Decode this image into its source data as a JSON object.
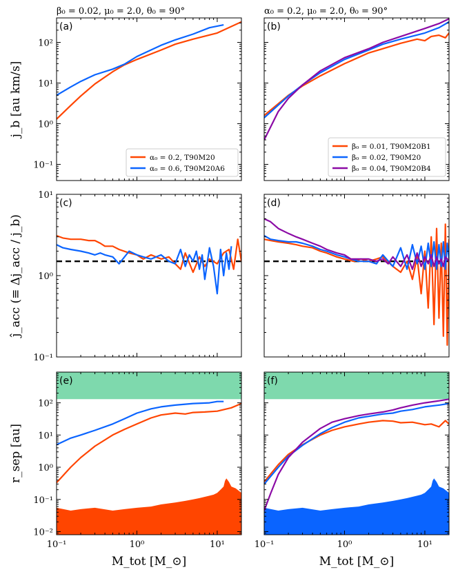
{
  "figure": {
    "column_titles": [
      "β₀ = 0.02,  μ₀ = 2.0,  θ₀ = 90°",
      "α₀ = 0.2,  μ₀ = 2.0,  θ₀ = 90°"
    ],
    "x_axis_label": "M_tot [M_⊙]",
    "x_ticks": [
      "10⁻¹",
      "10⁰",
      "10¹"
    ]
  },
  "colors": {
    "orange": "#ff4500",
    "blue": "#0a64ff",
    "purple": "#8b0aa5",
    "green_band": "#7ed9ad",
    "black": "#000000"
  },
  "chart_data": [
    {
      "panel": "(a)",
      "type": "line",
      "xscale": "log",
      "yscale": "log",
      "xlim": [
        0.1,
        20
      ],
      "ylim": [
        0.04,
        400
      ],
      "ylabel": "j_b [au km/s]",
      "yticks": [
        "10⁻¹",
        "10⁰",
        "10¹",
        "10²"
      ],
      "legend": {
        "position": "lower-right"
      },
      "series": [
        {
          "name": "α₀ = 0.2, T90M20",
          "color": "orange",
          "x": [
            0.1,
            0.15,
            0.2,
            0.3,
            0.5,
            0.7,
            1,
            2,
            3,
            5,
            10,
            20
          ],
          "y": [
            1.3,
            2.8,
            4.8,
            9.5,
            19,
            28,
            38,
            65,
            90,
            120,
            170,
            320
          ]
        },
        {
          "name": "α₀ = 0.6, T90M20A6",
          "color": "blue",
          "x": [
            0.1,
            0.15,
            0.2,
            0.3,
            0.5,
            0.7,
            1,
            2,
            3,
            5,
            8,
            12
          ],
          "y": [
            5,
            8,
            11,
            16,
            22,
            29,
            45,
            85,
            115,
            160,
            230,
            270
          ]
        }
      ]
    },
    {
      "panel": "(b)",
      "type": "line",
      "xscale": "log",
      "yscale": "log",
      "xlim": [
        0.1,
        20
      ],
      "ylim": [
        0.04,
        400
      ],
      "legend": {
        "position": "lower-right"
      },
      "series": [
        {
          "name": "β₀ = 0.01, T90M20B1",
          "color": "orange",
          "x": [
            0.1,
            0.2,
            0.3,
            0.5,
            1,
            2,
            3,
            5,
            8,
            10,
            12,
            15,
            18,
            20
          ],
          "y": [
            1.6,
            5,
            8.5,
            15,
            30,
            55,
            70,
            95,
            120,
            110,
            140,
            150,
            130,
            170
          ]
        },
        {
          "name": "β₀ = 0.02, T90M20",
          "color": "blue",
          "x": [
            0.1,
            0.2,
            0.3,
            0.5,
            1,
            2,
            3,
            5,
            10,
            15,
            20
          ],
          "y": [
            1.4,
            4.8,
            9,
            18,
            38,
            65,
            90,
            120,
            170,
            230,
            320
          ]
        },
        {
          "name": "β₀ = 0.04, T90M20B4",
          "color": "purple",
          "x": [
            0.1,
            0.15,
            0.2,
            0.3,
            0.5,
            1,
            2,
            3,
            5,
            10,
            15,
            20
          ],
          "y": [
            0.4,
            2,
            4.2,
            9,
            20,
            42,
            70,
            100,
            140,
            220,
            290,
            380
          ]
        }
      ]
    },
    {
      "panel": "(c)",
      "type": "line",
      "xscale": "log",
      "yscale": "log",
      "xlim": [
        0.1,
        20
      ],
      "ylim": [
        0.1,
        10
      ],
      "ylabel": "ĵ_acc (≡ Δj_acc / j_b)",
      "yticks": [
        "10⁻¹",
        "10⁰",
        "10¹"
      ],
      "reference_line": 1.5,
      "series": [
        {
          "name": "α₀ = 0.2, T90M20",
          "color": "orange",
          "x": [
            0.1,
            0.12,
            0.15,
            0.2,
            0.25,
            0.3,
            0.35,
            0.4,
            0.5,
            0.6,
            0.8,
            1.0,
            1.2,
            1.5,
            2,
            2.5,
            3,
            3.5,
            4,
            5,
            6,
            7,
            8,
            10,
            12,
            14,
            16,
            18,
            20
          ],
          "y": [
            3.1,
            2.9,
            2.8,
            2.8,
            2.7,
            2.7,
            2.5,
            2.3,
            2.3,
            2.1,
            1.9,
            1.8,
            1.6,
            1.8,
            1.6,
            1.7,
            1.4,
            1.2,
            1.9,
            1.1,
            1.7,
            1.3,
            1.6,
            1.4,
            1.9,
            2.1,
            1.2,
            2.8,
            1.5
          ]
        },
        {
          "name": "α₀ = 0.6, T90M20A6",
          "color": "blue",
          "x": [
            0.1,
            0.12,
            0.15,
            0.2,
            0.25,
            0.3,
            0.35,
            0.4,
            0.5,
            0.6,
            0.8,
            1.0,
            1.2,
            1.5,
            2,
            2.5,
            3,
            3.5,
            4,
            4.5,
            5,
            5.5,
            6,
            6.5,
            7,
            8,
            9,
            10,
            11,
            12,
            13,
            14,
            15
          ],
          "y": [
            2.4,
            2.2,
            2.1,
            2.0,
            1.9,
            1.8,
            1.9,
            1.8,
            1.7,
            1.4,
            2.0,
            1.8,
            1.7,
            1.6,
            1.8,
            1.5,
            1.4,
            2.1,
            1.3,
            1.8,
            1.5,
            2.0,
            1.2,
            1.8,
            0.9,
            2.2,
            1.3,
            0.6,
            2.1,
            1.0,
            1.9,
            1.2,
            2.3
          ]
        }
      ]
    },
    {
      "panel": "(d)",
      "type": "line",
      "xscale": "log",
      "yscale": "log",
      "xlim": [
        0.1,
        20
      ],
      "ylim": [
        0.1,
        10
      ],
      "reference_line": 1.5,
      "series": [
        {
          "name": "β₀ = 0.01, T90M20B1",
          "color": "orange",
          "x": [
            0.1,
            0.12,
            0.15,
            0.2,
            0.25,
            0.3,
            0.4,
            0.5,
            0.6,
            0.8,
            1,
            1.3,
            1.6,
            2,
            2.5,
            3,
            4,
            5,
            6,
            7,
            8,
            9,
            10,
            11,
            12,
            13,
            14,
            15,
            16,
            17,
            18,
            19,
            20
          ],
          "y": [
            2.8,
            2.7,
            2.6,
            2.5,
            2.4,
            2.3,
            2.2,
            2.0,
            1.9,
            1.7,
            1.6,
            1.5,
            1.6,
            1.5,
            1.6,
            1.7,
            1.3,
            1.1,
            1.5,
            0.9,
            1.7,
            0.6,
            2.0,
            0.4,
            3.0,
            0.25,
            3.8,
            0.3,
            2.5,
            0.18,
            4.3,
            0.14,
            2.8
          ]
        },
        {
          "name": "β₀ = 0.02, T90M20",
          "color": "blue",
          "x": [
            0.1,
            0.12,
            0.15,
            0.2,
            0.25,
            0.3,
            0.4,
            0.5,
            0.6,
            0.8,
            1,
            1.2,
            1.5,
            2,
            2.5,
            3,
            4,
            5,
            6,
            7,
            8,
            9,
            10,
            11,
            12,
            13,
            14,
            15,
            16,
            17,
            18,
            19,
            20
          ],
          "y": [
            3.1,
            2.8,
            2.7,
            2.6,
            2.6,
            2.5,
            2.3,
            2.1,
            2.0,
            1.8,
            1.7,
            1.6,
            1.5,
            1.5,
            1.4,
            1.8,
            1.3,
            2.2,
            1.2,
            2.4,
            1.4,
            2.3,
            1.2,
            2.5,
            1.3,
            2.6,
            1.2,
            2.4,
            1.3,
            2.6,
            1.2,
            2.5,
            1.6
          ]
        },
        {
          "name": "β₀ = 0.04, T90M20B4",
          "color": "purple",
          "x": [
            0.1,
            0.12,
            0.15,
            0.2,
            0.25,
            0.3,
            0.4,
            0.5,
            0.6,
            0.8,
            1,
            1.2,
            1.5,
            2,
            2.5,
            3,
            3.5,
            4,
            5,
            6,
            7,
            8,
            9,
            10,
            11,
            12,
            13,
            14,
            15,
            16,
            17,
            18,
            20
          ],
          "y": [
            5,
            4.6,
            3.8,
            3.3,
            3.0,
            2.8,
            2.5,
            2.3,
            2.1,
            1.9,
            1.8,
            1.6,
            1.6,
            1.6,
            1.5,
            1.6,
            1.4,
            1.7,
            1.3,
            1.8,
            1.2,
            1.9,
            1.3,
            1.7,
            1.4,
            1.8,
            1.3,
            1.7,
            1.4,
            1.6,
            1.3,
            1.7,
            1.5
          ]
        }
      ]
    },
    {
      "panel": "(e)",
      "type": "line",
      "xscale": "log",
      "yscale": "log",
      "xlim": [
        0.1,
        20
      ],
      "ylim": [
        0.008,
        900
      ],
      "ylabel": "r_sep [au]",
      "yticks": [
        "10⁻²",
        "10⁻¹",
        "10⁰",
        "10¹",
        "10²"
      ],
      "band": {
        "y_from": 130,
        "y_to": 900,
        "color": "green_band"
      },
      "filled_area": {
        "color": "orange",
        "x": [
          0.1,
          0.15,
          0.2,
          0.3,
          0.5,
          0.7,
          1,
          1.5,
          2,
          3,
          4,
          5,
          6,
          7,
          8,
          9,
          10,
          11,
          12,
          12.5,
          13,
          14,
          15,
          17,
          20
        ],
        "y": [
          0.055,
          0.045,
          0.05,
          0.055,
          0.045,
          0.05,
          0.055,
          0.06,
          0.07,
          0.08,
          0.09,
          0.1,
          0.11,
          0.12,
          0.13,
          0.14,
          0.16,
          0.2,
          0.25,
          0.38,
          0.45,
          0.35,
          0.25,
          0.22,
          0.16
        ]
      },
      "series": [
        {
          "name": "α₀ = 0.2, T90M20",
          "color": "orange",
          "x": [
            0.1,
            0.15,
            0.2,
            0.3,
            0.5,
            0.7,
            1,
            1.5,
            2,
            3,
            4,
            5,
            7,
            10,
            15,
            20
          ],
          "y": [
            0.33,
            1.0,
            2.0,
            4.5,
            10,
            15,
            22,
            34,
            42,
            48,
            45,
            50,
            52,
            55,
            70,
            95
          ]
        },
        {
          "name": "α₀ = 0.6, T90M20A6",
          "color": "blue",
          "x": [
            0.1,
            0.15,
            0.2,
            0.3,
            0.5,
            0.7,
            1,
            1.5,
            2,
            3,
            5,
            8,
            10,
            12
          ],
          "y": [
            5,
            8,
            10,
            14,
            22,
            32,
            48,
            65,
            75,
            85,
            95,
            100,
            110,
            110
          ]
        }
      ]
    },
    {
      "panel": "(f)",
      "type": "line",
      "xscale": "log",
      "yscale": "log",
      "xlim": [
        0.1,
        20
      ],
      "ylim": [
        0.008,
        900
      ],
      "band": {
        "y_from": 130,
        "y_to": 900,
        "color": "green_band"
      },
      "filled_area": {
        "color": "blue",
        "x": [
          0.1,
          0.15,
          0.2,
          0.3,
          0.5,
          0.7,
          1,
          1.5,
          2,
          3,
          4,
          5,
          6,
          7,
          8,
          9,
          10,
          11,
          12,
          12.5,
          13,
          14,
          15,
          17,
          20
        ],
        "y": [
          0.055,
          0.045,
          0.05,
          0.055,
          0.045,
          0.05,
          0.055,
          0.06,
          0.07,
          0.08,
          0.09,
          0.1,
          0.11,
          0.12,
          0.13,
          0.14,
          0.16,
          0.2,
          0.25,
          0.38,
          0.45,
          0.35,
          0.25,
          0.22,
          0.16
        ]
      },
      "series": [
        {
          "name": "β₀ = 0.01, T90M20B1",
          "color": "orange",
          "x": [
            0.1,
            0.15,
            0.2,
            0.3,
            0.5,
            0.7,
            1,
            1.5,
            2,
            3,
            4,
            5,
            7,
            10,
            12,
            15,
            18,
            20
          ],
          "y": [
            0.35,
            1.2,
            2.5,
            5,
            10,
            14,
            18,
            22,
            25,
            28,
            27,
            24,
            25,
            21,
            22,
            18,
            28,
            22
          ]
        },
        {
          "name": "β₀ = 0.02, T90M20",
          "color": "blue",
          "x": [
            0.1,
            0.15,
            0.2,
            0.3,
            0.5,
            0.7,
            1,
            1.5,
            2,
            3,
            4,
            5,
            7,
            10,
            15,
            20
          ],
          "y": [
            0.3,
            1.0,
            2.2,
            4.8,
            11,
            17,
            25,
            34,
            38,
            45,
            48,
            55,
            62,
            75,
            85,
            95
          ]
        },
        {
          "name": "β₀ = 0.04, T90M20B4",
          "color": "purple",
          "x": [
            0.1,
            0.12,
            0.15,
            0.2,
            0.3,
            0.5,
            0.7,
            1,
            1.5,
            2,
            3,
            4,
            5,
            7,
            10,
            15,
            20
          ],
          "y": [
            0.045,
            0.15,
            0.6,
            2,
            6,
            16,
            25,
            32,
            40,
            45,
            52,
            60,
            70,
            85,
            100,
            115,
            130
          ]
        }
      ]
    }
  ]
}
